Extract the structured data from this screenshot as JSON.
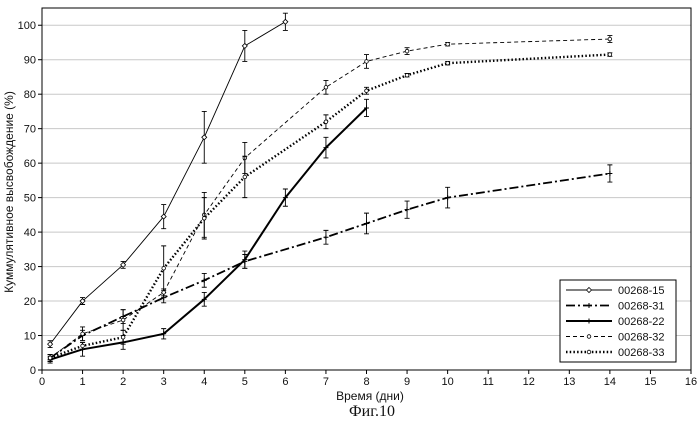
{
  "chart_data": {
    "type": "line",
    "title": "",
    "xlabel": "Время (дни)",
    "ylabel": "Куммулятивное высвобождение (%)",
    "caption": "Фиг.10",
    "xlim": [
      0,
      16
    ],
    "ylim": [
      0,
      105
    ],
    "x_ticks": [
      0,
      1,
      2,
      3,
      4,
      5,
      6,
      7,
      8,
      9,
      10,
      11,
      12,
      13,
      14,
      15,
      16
    ],
    "y_ticks": [
      0,
      10,
      20,
      30,
      40,
      50,
      60,
      70,
      80,
      90,
      100
    ],
    "grid": "horizontal",
    "legend_position": "bottom-right",
    "series": [
      {
        "name": "00268-15",
        "style": "thin-solid",
        "marker": "diamond",
        "x": [
          0.2,
          1,
          2,
          3,
          4,
          5,
          6
        ],
        "y": [
          7.5,
          20,
          30.5,
          44.5,
          67.5,
          94,
          101
        ],
        "err": [
          1,
          1,
          1,
          3.5,
          7.5,
          4.5,
          2.5
        ]
      },
      {
        "name": "00268-31",
        "style": "dash-dot",
        "marker": "plus",
        "x": [
          0.2,
          1,
          2,
          3,
          4,
          5,
          7,
          8,
          9,
          10,
          14
        ],
        "y": [
          3.5,
          10,
          15.5,
          21,
          26,
          31.5,
          38.5,
          42.5,
          46.5,
          50,
          57
        ],
        "err": [
          1,
          1.5,
          2,
          1.5,
          2,
          2,
          2,
          3,
          2.5,
          3,
          2.5
        ]
      },
      {
        "name": "00268-22",
        "style": "thick-solid",
        "marker": "plus",
        "x": [
          0.2,
          1,
          2,
          3,
          4,
          5,
          6,
          7,
          8
        ],
        "y": [
          3,
          6,
          8,
          10.5,
          20.5,
          32,
          50,
          64.5,
          76
        ],
        "err": [
          1,
          2,
          2,
          1.5,
          2,
          2.5,
          2.5,
          3,
          2.5
        ]
      },
      {
        "name": "00268-32",
        "style": "thin-dashed",
        "marker": "circle",
        "x": [
          0.2,
          1,
          2,
          3,
          4,
          5,
          7,
          8,
          9,
          10,
          14
        ],
        "y": [
          3.5,
          10.5,
          14.5,
          22.5,
          45,
          61.5,
          82,
          89.5,
          92.5,
          94.5,
          96
        ],
        "err": [
          1,
          2,
          3,
          1,
          6.5,
          4.5,
          2,
          2,
          1,
          0.5,
          1
        ]
      },
      {
        "name": "00268-33",
        "style": "thick-dotted",
        "marker": "circle",
        "x": [
          0.2,
          1,
          2,
          3,
          4,
          5,
          7,
          8,
          9,
          10,
          14
        ],
        "y": [
          3.5,
          7,
          9.5,
          29.5,
          44,
          56,
          72,
          81,
          85.5,
          89,
          91.5
        ],
        "err": [
          1,
          1,
          2,
          6.5,
          6,
          6,
          2,
          1,
          0.5,
          0.5,
          0.5
        ]
      }
    ]
  }
}
